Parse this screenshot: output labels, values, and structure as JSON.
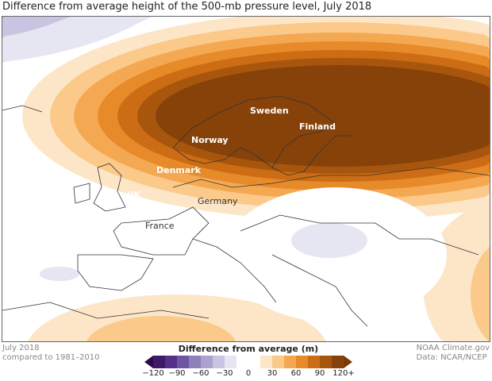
{
  "title": "Difference from average height of the 500-mb pressure level, July 2018",
  "map": {
    "labels": [
      "Sweden",
      "Finland",
      "Norway",
      "Denmark",
      "UK",
      "Germany",
      "France"
    ]
  },
  "footer": {
    "left_line1": "July 2018",
    "left_line2": "compared to 1981–2010",
    "right_line1": "NOAA Climate.gov",
    "right_line2": "Data: NCAR/NCEP"
  },
  "legend": {
    "title": "Difference from average (m)",
    "ticks": [
      "−120",
      "−90",
      "−60",
      "−30",
      "0",
      "30",
      "60",
      "90",
      "120+"
    ],
    "colors": [
      "#2d0a4e",
      "#3d1a66",
      "#55308a",
      "#6e55a4",
      "#8e80bb",
      "#aba3cf",
      "#c9c4e1",
      "#e6e5f2",
      "#ffffff",
      "#ffffff",
      "#fde6c8",
      "#fbc98a",
      "#f5a852",
      "#e68a2a",
      "#cc6c14",
      "#a8560d",
      "#87420a",
      "#7a3a08"
    ]
  }
}
